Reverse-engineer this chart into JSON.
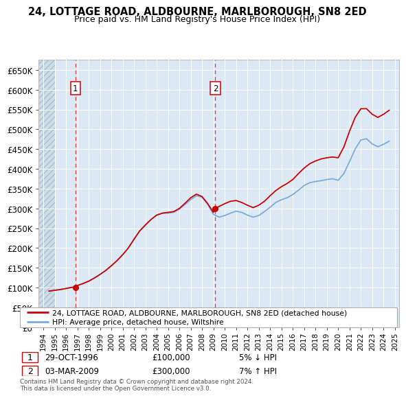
{
  "title": "24, LOTTAGE ROAD, ALDBOURNE, MARLBOROUGH, SN8 2ED",
  "subtitle": "Price paid vs. HM Land Registry's House Price Index (HPI)",
  "property_label": "24, LOTTAGE ROAD, ALDBOURNE, MARLBOROUGH, SN8 2ED (detached house)",
  "hpi_label": "HPI: Average price, detached house, Wiltshire",
  "footer": "Contains HM Land Registry data © Crown copyright and database right 2024.\nThis data is licensed under the Open Government Licence v3.0.",
  "transactions": [
    {
      "date": "29-OCT-1996",
      "price": 100000,
      "pct": "5%",
      "dir": "↓",
      "label": "1",
      "x": 1996.83
    },
    {
      "date": "03-MAR-2009",
      "price": 300000,
      "pct": "7%",
      "dir": "↑",
      "label": "2",
      "x": 2009.17
    }
  ],
  "property_color": "#cc0000",
  "hpi_color": "#7aabdb",
  "dashed_line_color": "#dd4444",
  "background_color": "#dce9f5",
  "ylim": [
    0,
    675000
  ],
  "yticks": [
    0,
    50000,
    100000,
    150000,
    200000,
    250000,
    300000,
    350000,
    400000,
    450000,
    500000,
    550000,
    600000,
    650000
  ],
  "xlim": [
    1993.6,
    2025.4
  ],
  "hatch_end": 1995.0,
  "hpi_x": [
    1994.5,
    1995.0,
    1995.5,
    1996.0,
    1996.5,
    1997.0,
    1997.5,
    1998.0,
    1998.5,
    1999.0,
    1999.5,
    2000.0,
    2000.5,
    2001.0,
    2001.5,
    2002.0,
    2002.5,
    2003.0,
    2003.5,
    2004.0,
    2004.5,
    2005.0,
    2005.5,
    2006.0,
    2006.5,
    2007.0,
    2007.5,
    2008.0,
    2008.5,
    2009.0,
    2009.5,
    2010.0,
    2010.5,
    2011.0,
    2011.5,
    2012.0,
    2012.5,
    2013.0,
    2013.5,
    2014.0,
    2014.5,
    2015.0,
    2015.5,
    2016.0,
    2016.5,
    2017.0,
    2017.5,
    2018.0,
    2018.5,
    2019.0,
    2019.5,
    2020.0,
    2020.5,
    2021.0,
    2021.5,
    2022.0,
    2022.5,
    2023.0,
    2023.5,
    2024.0,
    2024.5
  ],
  "hpi_y": [
    91000,
    93000,
    95000,
    97500,
    100500,
    105000,
    110000,
    116000,
    124000,
    133000,
    143000,
    155000,
    168000,
    183000,
    200000,
    222000,
    243000,
    258000,
    272000,
    283000,
    288000,
    288000,
    290000,
    298000,
    310000,
    322000,
    332000,
    328000,
    310000,
    285000,
    278000,
    282000,
    288000,
    293000,
    290000,
    283000,
    278000,
    282000,
    292000,
    303000,
    315000,
    322000,
    327000,
    335000,
    346000,
    358000,
    365000,
    368000,
    370000,
    373000,
    375000,
    371000,
    388000,
    418000,
    450000,
    473000,
    476000,
    463000,
    456000,
    462000,
    470000
  ],
  "property_x": [
    1994.5,
    1995.0,
    1995.5,
    1996.0,
    1996.5,
    1996.83,
    1997.0,
    1997.5,
    1998.0,
    1998.5,
    1999.0,
    1999.5,
    2000.0,
    2000.5,
    2001.0,
    2001.5,
    2002.0,
    2002.5,
    2003.0,
    2003.5,
    2004.0,
    2004.5,
    2005.0,
    2005.5,
    2006.0,
    2006.5,
    2007.0,
    2007.5,
    2008.0,
    2008.5,
    2009.0,
    2009.17,
    2009.5,
    2010.0,
    2010.5,
    2011.0,
    2011.5,
    2012.0,
    2012.5,
    2013.0,
    2013.5,
    2014.0,
    2014.5,
    2015.0,
    2015.5,
    2016.0,
    2016.5,
    2017.0,
    2017.5,
    2018.0,
    2018.5,
    2019.0,
    2019.5,
    2020.0,
    2020.5,
    2021.0,
    2021.5,
    2022.0,
    2022.5,
    2023.0,
    2023.5,
    2024.0,
    2024.5
  ],
  "property_y": [
    91000,
    93000,
    95000,
    97500,
    100500,
    100000,
    105000,
    110000,
    116000,
    124000,
    133000,
    143000,
    155000,
    168000,
    183000,
    200000,
    222000,
    243000,
    258000,
    272000,
    283000,
    288000,
    290000,
    292000,
    300000,
    313000,
    327000,
    336000,
    330000,
    312000,
    290000,
    300000,
    305000,
    312000,
    318000,
    320000,
    315000,
    308000,
    302000,
    308000,
    318000,
    332000,
    345000,
    355000,
    363000,
    373000,
    388000,
    402000,
    413000,
    420000,
    425000,
    428000,
    430000,
    428000,
    455000,
    495000,
    530000,
    552000,
    552000,
    538000,
    530000,
    538000,
    548000
  ]
}
